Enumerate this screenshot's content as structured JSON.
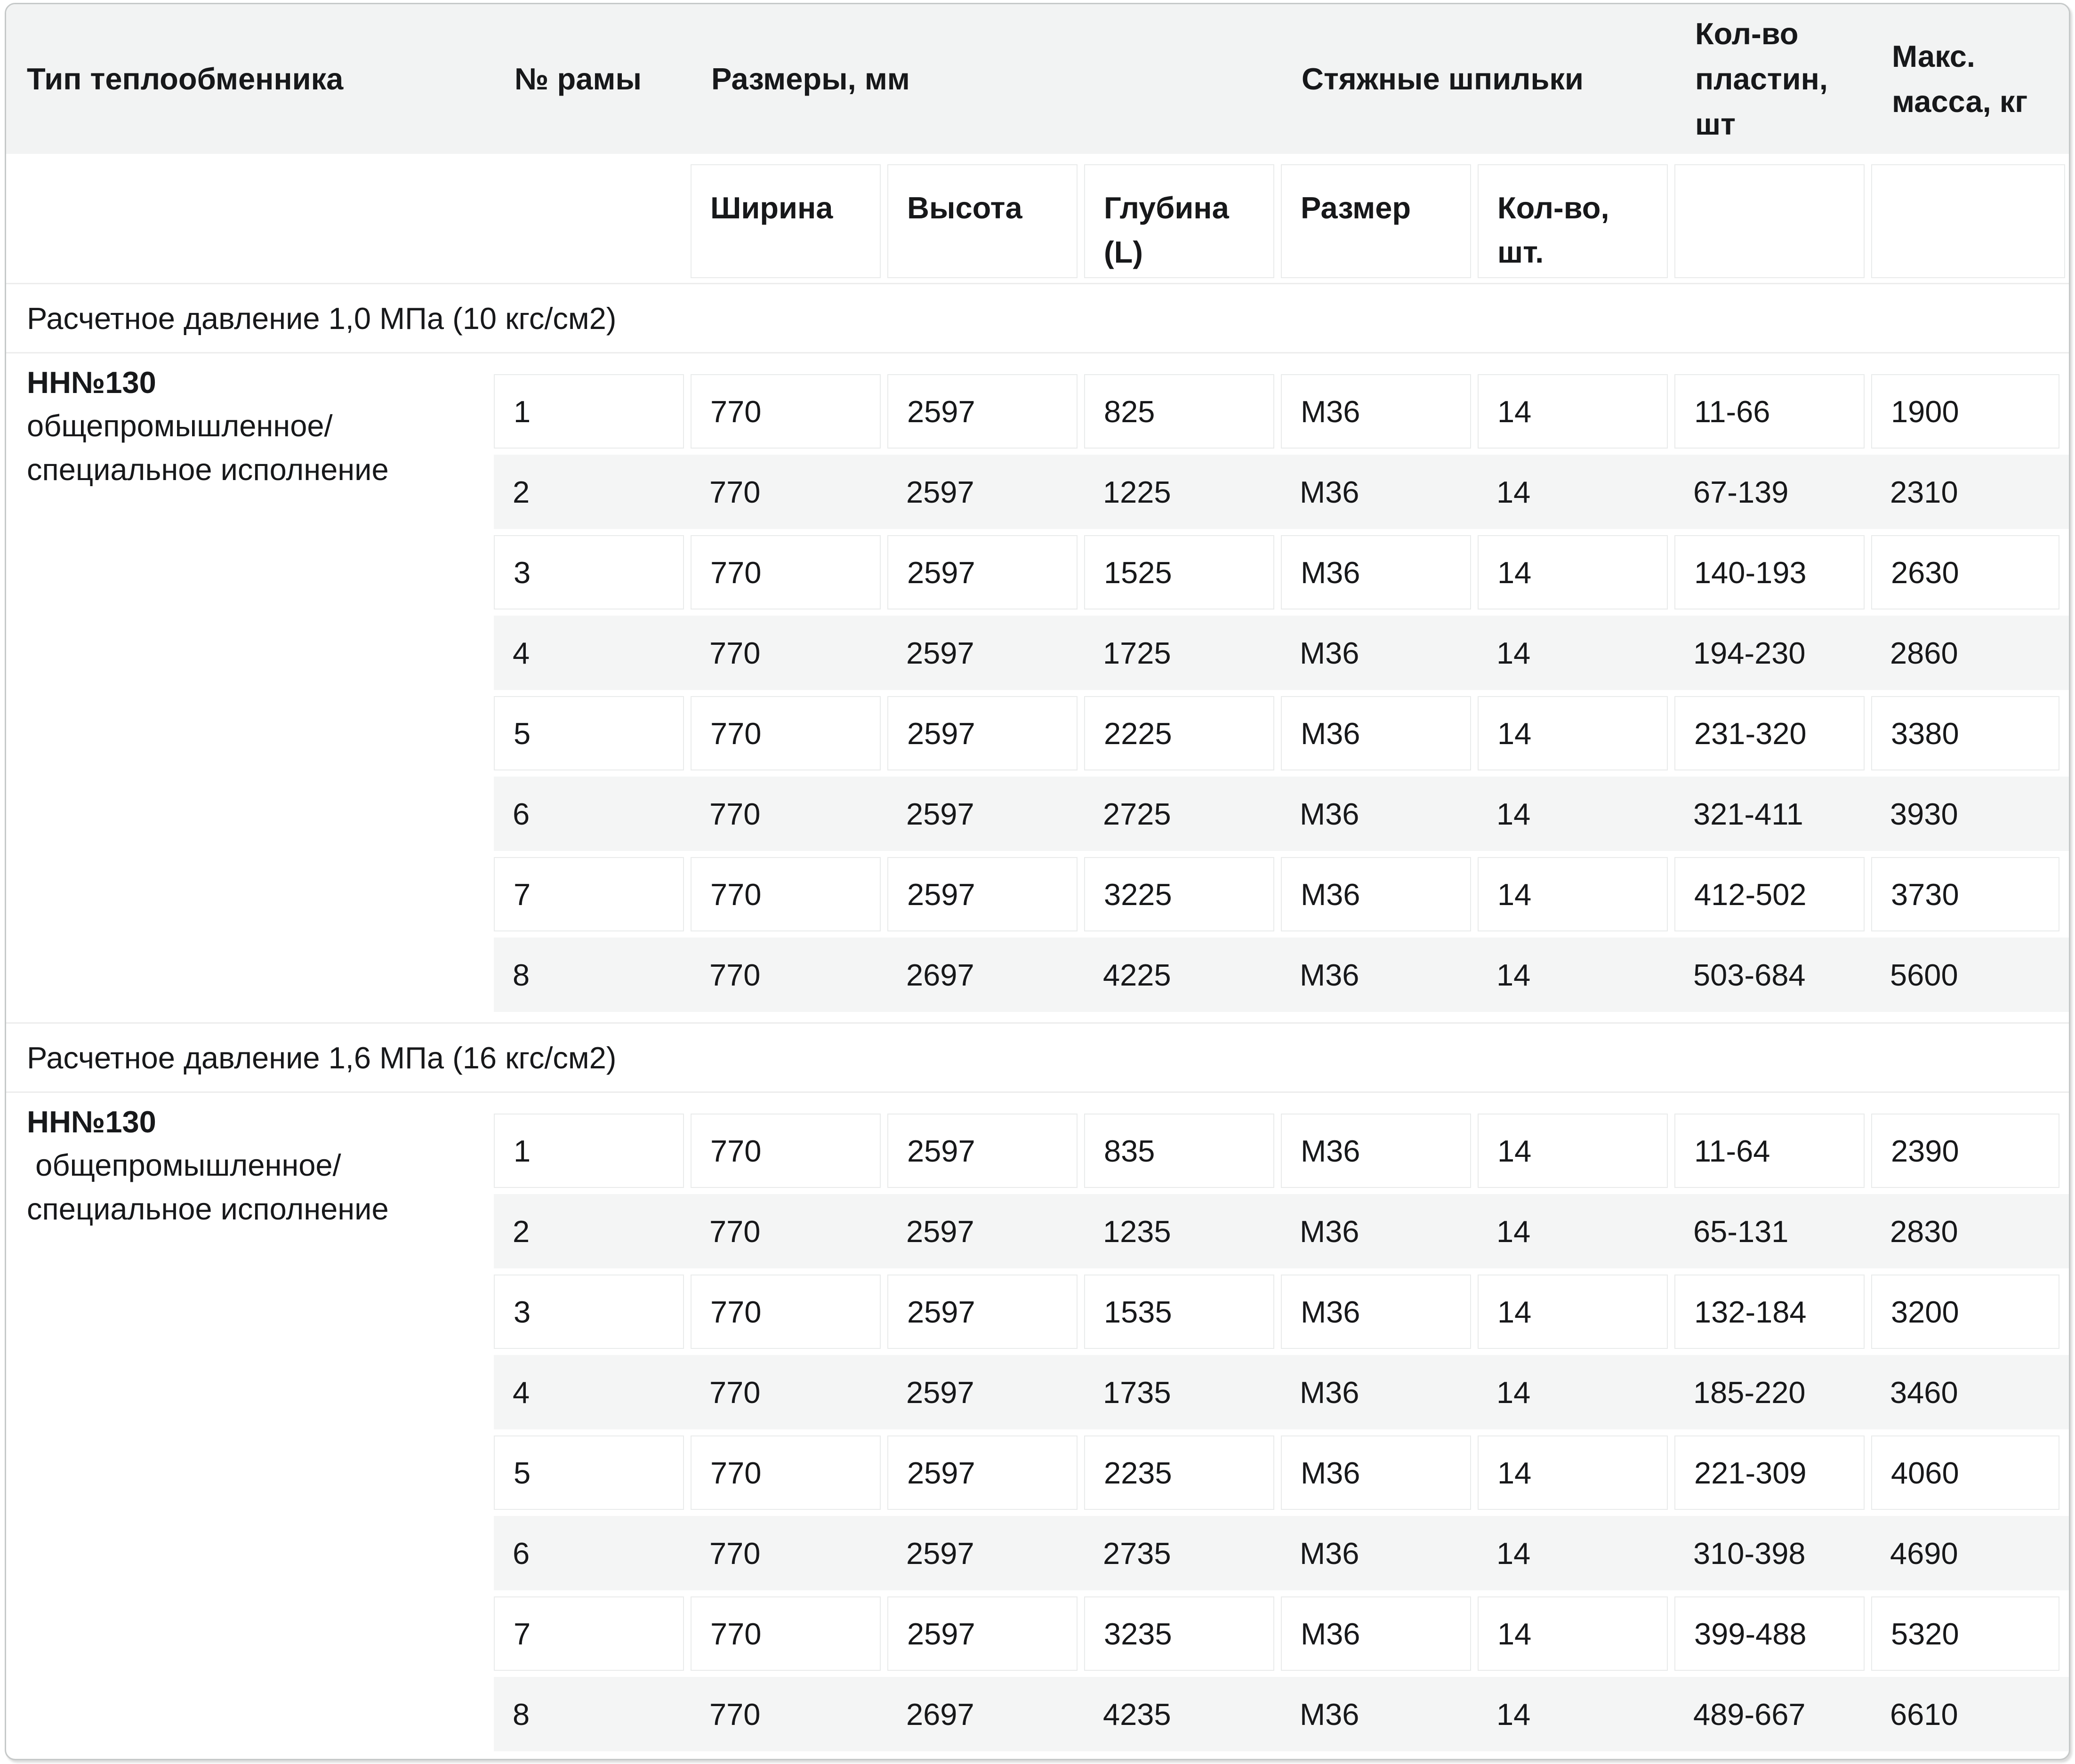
{
  "colors": {
    "hdr_bg": "#f2f3f3",
    "row_alt_bg": "#f4f5f5",
    "cell_border": "#e9ebeb",
    "section_line": "#ededed",
    "card_border": "#c6c9c9"
  },
  "table": {
    "header": {
      "type": "Тип теплообменника",
      "frame": "№ рамы",
      "dimensions": "Размеры, мм",
      "studs": "Стяжные шпильки",
      "plates": "Кол-во пластин, шт",
      "mass": "Макс. масса, кг"
    },
    "subheader": {
      "width": "Ширина",
      "height": "Высота",
      "depth": "Глубина (L)",
      "size": "Размер",
      "qty": "Кол-во, шт."
    },
    "sections": [
      {
        "title": "Расчетное давление 1,0 МПа (10 кгс/см2)",
        "type_name": "НН№130",
        "type_desc": "общепромышленное/\nспециальное исполнение",
        "rows": [
          {
            "frame": "1",
            "width": "770",
            "height": "2597",
            "depth": "825",
            "size": "М36",
            "qty": "14",
            "plates": "11-66",
            "mass": "1900"
          },
          {
            "frame": "2",
            "width": "770",
            "height": "2597",
            "depth": "1225",
            "size": "М36",
            "qty": "14",
            "plates": "67-139",
            "mass": "2310"
          },
          {
            "frame": "3",
            "width": "770",
            "height": "2597",
            "depth": "1525",
            "size": "М36",
            "qty": "14",
            "plates": "140-193",
            "mass": "2630"
          },
          {
            "frame": "4",
            "width": "770",
            "height": "2597",
            "depth": "1725",
            "size": "М36",
            "qty": "14",
            "plates": "194-230",
            "mass": "2860"
          },
          {
            "frame": "5",
            "width": "770",
            "height": "2597",
            "depth": "2225",
            "size": "М36",
            "qty": "14",
            "plates": "231-320",
            "mass": "3380"
          },
          {
            "frame": "6",
            "width": "770",
            "height": "2597",
            "depth": "2725",
            "size": "М36",
            "qty": "14",
            "plates": "321-411",
            "mass": "3930"
          },
          {
            "frame": "7",
            "width": "770",
            "height": "2597",
            "depth": "3225",
            "size": "М36",
            "qty": "14",
            "plates": "412-502",
            "mass": "3730"
          },
          {
            "frame": "8",
            "width": "770",
            "height": "2697",
            "depth": "4225",
            "size": "М36",
            "qty": "14",
            "plates": "503-684",
            "mass": "5600"
          }
        ]
      },
      {
        "title": "Расчетное давление 1,6 МПа (16 кгс/см2)",
        "type_name": "НН№130",
        "type_desc": " общепромышленное/\nспециальное исполнение",
        "rows": [
          {
            "frame": "1",
            "width": "770",
            "height": "2597",
            "depth": "835",
            "size": "М36",
            "qty": "14",
            "plates": "11-64",
            "mass": "2390"
          },
          {
            "frame": "2",
            "width": "770",
            "height": "2597",
            "depth": "1235",
            "size": "М36",
            "qty": "14",
            "plates": "65-131",
            "mass": "2830"
          },
          {
            "frame": "3",
            "width": "770",
            "height": "2597",
            "depth": "1535",
            "size": "М36",
            "qty": "14",
            "plates": "132-184",
            "mass": "3200"
          },
          {
            "frame": "4",
            "width": "770",
            "height": "2597",
            "depth": "1735",
            "size": "М36",
            "qty": "14",
            "plates": "185-220",
            "mass": "3460"
          },
          {
            "frame": "5",
            "width": "770",
            "height": "2597",
            "depth": "2235",
            "size": "М36",
            "qty": "14",
            "plates": "221-309",
            "mass": "4060"
          },
          {
            "frame": "6",
            "width": "770",
            "height": "2597",
            "depth": "2735",
            "size": "М36",
            "qty": "14",
            "plates": "310-398",
            "mass": "4690"
          },
          {
            "frame": "7",
            "width": "770",
            "height": "2597",
            "depth": "3235",
            "size": "М36",
            "qty": "14",
            "plates": "399-488",
            "mass": "5320"
          },
          {
            "frame": "8",
            "width": "770",
            "height": "2697",
            "depth": "4235",
            "size": "М36",
            "qty": "14",
            "plates": "489-667",
            "mass": "6610"
          }
        ]
      }
    ]
  }
}
